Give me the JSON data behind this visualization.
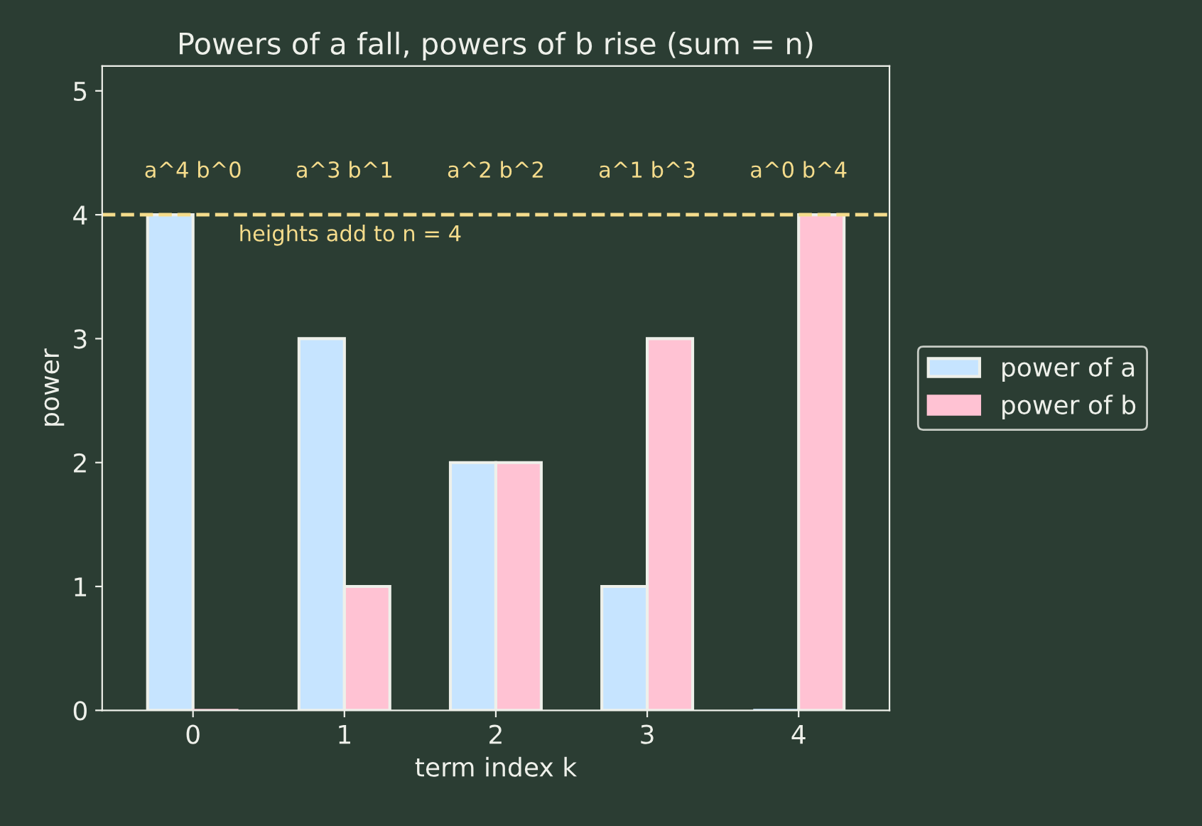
{
  "chart_data": {
    "type": "bar",
    "title": "Powers of a fall, powers of b rise (sum = n)",
    "xlabel": "term index k",
    "ylabel": "power",
    "categories": [
      "0",
      "1",
      "2",
      "3",
      "4"
    ],
    "series": [
      {
        "name": "power of a",
        "color": "#c6e4ff",
        "values": [
          4,
          3,
          2,
          1,
          0
        ]
      },
      {
        "name": "power of b",
        "color": "#ffc2d3",
        "values": [
          0,
          1,
          2,
          3,
          4
        ]
      }
    ],
    "ylim": [
      0,
      5.2
    ],
    "yticks": [
      0,
      1,
      2,
      3,
      4,
      5
    ],
    "ref_lines": [
      {
        "axis": "y",
        "value": 4,
        "label": "heights add to n = 4",
        "color": "#f5dc8c",
        "line_style": "dashed"
      }
    ],
    "annotations": [
      "a^4 b^0",
      "a^3 b^1",
      "a^2 b^2",
      "a^1 b^3",
      "a^0 b^4"
    ],
    "legend": "right",
    "grid": false
  }
}
